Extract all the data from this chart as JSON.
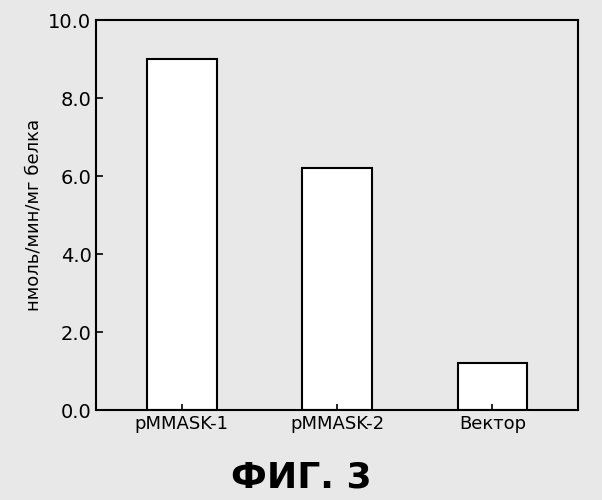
{
  "categories": [
    "pMMASK-1",
    "pMMASK-2",
    "Вектор"
  ],
  "values": [
    9.0,
    6.2,
    1.2
  ],
  "bar_color": "#ffffff",
  "bar_edgecolor": "#000000",
  "bar_linewidth": 1.5,
  "ylabel": "нмоль/мин/мг белка",
  "ylim": [
    0,
    10.0
  ],
  "yticks": [
    0.0,
    2.0,
    4.0,
    6.0,
    8.0,
    10.0
  ],
  "figure_caption": "ФИГ. 3",
  "background_color": "#e8e8e8",
  "plot_bg_color": "#e8e8e8",
  "bar_width": 0.45,
  "ylabel_fontsize": 13,
  "tick_fontsize": 14,
  "xtick_fontsize": 13,
  "caption_fontsize": 26,
  "spine_linewidth": 1.5,
  "xlim": [
    -0.55,
    2.55
  ]
}
